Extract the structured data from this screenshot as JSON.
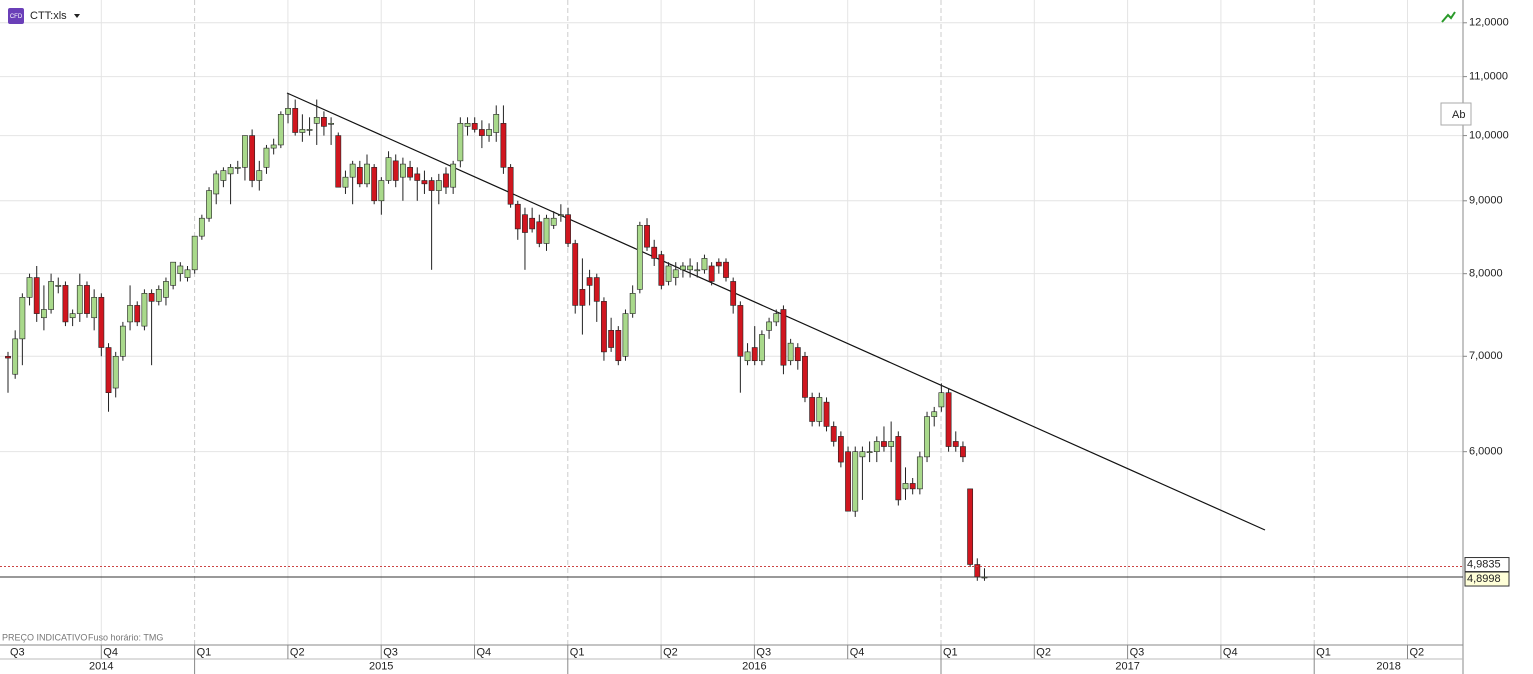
{
  "chart_data": {
    "type": "candlestick",
    "title": "CTT:xls",
    "icon_label": "CFD",
    "note": "PREÇO INDICATIVO",
    "timezone": "Fuso horário: TMG",
    "button_label": "Ab",
    "log_scale": true,
    "grid": true,
    "up_color": "#a9d98b",
    "down_color": "#d0161f",
    "ylim": [
      4.39,
      12.45
    ],
    "yticks": [
      {
        "value": 6,
        "label": "6,0000"
      },
      {
        "value": 7,
        "label": "7,0000"
      },
      {
        "value": 8,
        "label": "8,0000"
      },
      {
        "value": 9,
        "label": "9,0000"
      },
      {
        "value": 10,
        "label": "10,0000"
      },
      {
        "value": 11,
        "label": "11,0000"
      },
      {
        "value": 12,
        "label": "12,0000"
      }
    ],
    "price_lines": [
      {
        "value": 4.9835,
        "label": "4,9835"
      },
      {
        "value": 4.8998,
        "label": "4,8998"
      }
    ],
    "quarters": [
      "Q3",
      "Q4",
      "Q1",
      "Q2",
      "Q3",
      "Q4",
      "Q1",
      "Q2",
      "Q3",
      "Q4",
      "Q1",
      "Q2",
      "Q3",
      "Q4",
      "Q1",
      "Q2"
    ],
    "years": [
      "2014",
      "2015",
      "2016",
      "2017",
      "2018"
    ],
    "open": [
      7.0,
      6.8,
      7.2,
      7.7,
      7.95,
      7.45,
      7.55,
      7.85,
      7.85,
      7.45,
      7.5,
      7.85,
      7.45,
      7.7,
      7.1,
      6.65,
      7.0,
      7.4,
      7.6,
      7.35,
      7.75,
      7.65,
      7.7,
      7.85,
      8.0,
      7.95,
      8.05,
      8.5,
      8.75,
      9.1,
      9.3,
      9.4,
      9.5,
      9.5,
      10.0,
      9.3,
      9.5,
      9.8,
      9.85,
      10.35,
      10.45,
      10.05,
      10.1,
      10.2,
      10.3,
      10.2,
      10.0,
      9.2,
      9.35,
      9.5,
      9.25,
      9.5,
      9.0,
      9.3,
      9.6,
      9.35,
      9.5,
      9.4,
      9.3,
      9.3,
      9.15,
      9.4,
      9.2,
      9.6,
      10.15,
      10.2,
      10.1,
      10.0,
      10.05,
      10.2,
      9.5,
      8.95,
      8.8,
      8.75,
      8.7,
      8.4,
      8.65,
      8.8,
      8.8,
      8.4,
      7.8,
      7.95,
      7.95,
      7.65,
      7.3,
      7.3,
      7.0,
      7.5,
      7.8,
      8.65,
      8.35,
      8.25,
      7.9,
      7.95,
      8.05,
      8.05,
      8.05,
      8.05,
      8.1,
      8.15,
      8.15,
      7.9,
      7.6,
      6.95,
      7.1,
      6.95,
      7.3,
      7.4,
      7.55,
      6.95,
      7.1,
      7.0,
      6.55,
      6.3,
      6.5,
      6.25,
      6.15,
      6.0,
      5.45,
      5.95,
      6.0,
      6.0,
      6.1,
      6.05,
      6.15,
      5.65,
      5.7,
      5.65,
      5.95,
      6.35,
      6.45,
      6.6,
      6.1,
      6.05,
      5.65,
      5.0,
      4.9
    ],
    "high": [
      7.05,
      7.3,
      7.75,
      8.0,
      8.1,
      7.85,
      8.0,
      7.95,
      7.9,
      7.55,
      8.0,
      7.9,
      7.8,
      7.75,
      7.15,
      7.05,
      7.4,
      7.85,
      7.65,
      7.8,
      7.8,
      7.85,
      7.95,
      8.15,
      8.15,
      8.1,
      8.5,
      8.8,
      9.2,
      9.45,
      9.5,
      9.55,
      9.6,
      10.0,
      10.1,
      9.6,
      9.85,
      9.95,
      10.4,
      10.7,
      10.6,
      10.35,
      10.3,
      10.6,
      10.4,
      10.3,
      10.05,
      9.45,
      9.6,
      9.6,
      9.7,
      9.55,
      9.35,
      9.75,
      9.7,
      9.65,
      9.6,
      9.5,
      9.45,
      9.35,
      9.4,
      9.5,
      9.6,
      10.3,
      10.3,
      10.3,
      10.25,
      10.2,
      10.5,
      10.5,
      9.55,
      9.0,
      8.9,
      8.9,
      8.8,
      8.8,
      8.85,
      8.95,
      8.9,
      8.45,
      8.2,
      8.05,
      8.0,
      7.7,
      7.45,
      7.35,
      7.55,
      7.85,
      8.7,
      8.75,
      8.45,
      8.3,
      8.15,
      8.15,
      8.15,
      8.2,
      8.15,
      8.25,
      8.15,
      8.2,
      8.2,
      7.95,
      7.65,
      7.15,
      7.35,
      7.3,
      7.45,
      7.55,
      7.6,
      7.2,
      7.15,
      7.05,
      6.6,
      6.6,
      6.55,
      6.3,
      6.2,
      6.05,
      6.05,
      6.05,
      6.1,
      6.15,
      6.25,
      6.3,
      6.2,
      5.85,
      5.75,
      6.0,
      6.4,
      6.45,
      6.7,
      6.65,
      6.2,
      6.1,
      5.65,
      5.05,
      4.97
    ],
    "low": [
      6.6,
      6.75,
      6.9,
      7.6,
      7.4,
      7.3,
      7.5,
      7.75,
      7.35,
      7.35,
      7.4,
      7.45,
      7.3,
      7.0,
      6.4,
      6.55,
      6.95,
      7.3,
      7.35,
      7.3,
      6.9,
      7.6,
      7.6,
      7.8,
      7.9,
      7.9,
      8.0,
      8.45,
      8.7,
      8.95,
      9.2,
      8.95,
      9.4,
      9.3,
      9.2,
      9.15,
      9.4,
      9.7,
      9.8,
      10.2,
      10.0,
      9.9,
      10.0,
      9.85,
      10.0,
      9.85,
      9.2,
      9.1,
      8.95,
      9.2,
      9.2,
      8.95,
      8.8,
      9.25,
      9.2,
      9.0,
      9.3,
      9.0,
      9.1,
      8.05,
      8.95,
      9.1,
      9.1,
      9.5,
      10.0,
      10.05,
      9.8,
      9.9,
      9.9,
      9.4,
      8.9,
      8.45,
      8.05,
      8.55,
      8.35,
      8.3,
      8.6,
      8.7,
      8.35,
      7.5,
      7.25,
      7.6,
      7.4,
      6.95,
      7.05,
      6.9,
      6.95,
      7.45,
      7.75,
      8.3,
      8.1,
      7.8,
      7.85,
      7.85,
      7.95,
      7.95,
      7.95,
      8.0,
      7.85,
      8.0,
      7.9,
      7.5,
      6.6,
      6.9,
      6.9,
      6.9,
      7.2,
      7.35,
      6.8,
      6.9,
      6.85,
      6.5,
      6.25,
      6.25,
      6.2,
      6.05,
      5.85,
      5.45,
      5.4,
      5.55,
      5.9,
      5.9,
      6.0,
      5.9,
      5.5,
      5.55,
      5.6,
      5.6,
      5.9,
      6.25,
      6.4,
      6.0,
      6.0,
      5.9,
      4.98,
      4.87,
      4.87
    ],
    "close": [
      6.98,
      7.2,
      7.7,
      7.95,
      7.5,
      7.55,
      7.9,
      7.85,
      7.4,
      7.5,
      7.85,
      7.5,
      7.7,
      7.1,
      6.6,
      7.0,
      7.35,
      7.6,
      7.4,
      7.75,
      7.65,
      7.8,
      7.9,
      8.15,
      8.1,
      8.05,
      8.5,
      8.75,
      9.15,
      9.4,
      9.45,
      9.5,
      9.5,
      10.0,
      9.3,
      9.45,
      9.8,
      9.85,
      10.35,
      10.45,
      10.05,
      10.1,
      10.1,
      10.3,
      10.15,
      10.2,
      9.2,
      9.35,
      9.55,
      9.25,
      9.55,
      9.0,
      9.3,
      9.65,
      9.3,
      9.55,
      9.35,
      9.3,
      9.25,
      9.15,
      9.3,
      9.2,
      9.55,
      10.2,
      10.2,
      10.1,
      10.0,
      10.1,
      10.35,
      9.5,
      8.95,
      8.6,
      8.55,
      8.6,
      8.4,
      8.75,
      8.75,
      8.8,
      8.4,
      7.6,
      7.6,
      7.85,
      7.65,
      7.05,
      7.1,
      6.95,
      7.5,
      7.75,
      8.65,
      8.35,
      8.2,
      7.85,
      8.1,
      8.05,
      8.1,
      8.1,
      8.05,
      8.2,
      7.9,
      8.1,
      7.95,
      7.6,
      7.0,
      7.05,
      6.95,
      7.25,
      7.4,
      7.5,
      6.9,
      7.15,
      6.95,
      6.55,
      6.3,
      6.55,
      6.25,
      6.1,
      5.9,
      5.45,
      6.0,
      6.0,
      6.0,
      6.1,
      6.05,
      6.1,
      5.55,
      5.7,
      5.65,
      5.95,
      6.35,
      6.4,
      6.6,
      6.05,
      6.05,
      5.95,
      5.0,
      4.9,
      4.9
    ]
  }
}
